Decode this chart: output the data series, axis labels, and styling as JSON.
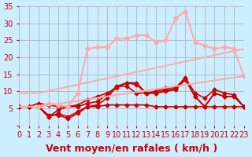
{
  "title": "",
  "xlabel": "Vent moyen/en rafales ( km/h )",
  "ylabel": "",
  "xlim": [
    0,
    23
  ],
  "ylim": [
    0,
    35
  ],
  "xticks": [
    0,
    1,
    2,
    3,
    4,
    5,
    6,
    7,
    8,
    9,
    10,
    11,
    12,
    13,
    14,
    15,
    16,
    17,
    18,
    19,
    20,
    21,
    22,
    23
  ],
  "yticks": [
    0,
    5,
    10,
    15,
    20,
    25,
    30,
    35
  ],
  "bg_color": "#cceeff",
  "grid_color": "#aaaaaa",
  "series": [
    {
      "x": [
        0,
        1,
        2,
        3,
        4,
        5,
        6,
        7,
        8,
        9,
        10,
        11,
        12,
        13,
        14,
        15,
        16,
        17,
        18,
        19,
        20,
        21,
        22,
        23
      ],
      "y": [
        5.5,
        5.5,
        5.5,
        3.0,
        3.0,
        2.0,
        3.5,
        5.5,
        5.5,
        6.0,
        6.0,
        6.0,
        6.0,
        6.0,
        5.5,
        5.5,
        5.5,
        5.5,
        5.5,
        5.5,
        5.5,
        5.5,
        5.5,
        5.5
      ],
      "color": "#cc0000",
      "lw": 1.2,
      "marker": "D",
      "ms": 2.5
    },
    {
      "x": [
        0,
        1,
        2,
        3,
        4,
        5,
        6,
        7,
        8,
        9,
        10,
        11,
        12,
        13,
        14,
        15,
        16,
        17,
        18,
        19,
        20,
        21,
        22,
        23
      ],
      "y": [
        5.5,
        5.5,
        5.5,
        2.5,
        3.5,
        2.5,
        4.0,
        5.5,
        6.0,
        8.0,
        11.5,
        11.5,
        9.5,
        9.5,
        9.5,
        10.0,
        10.5,
        13.5,
        8.5,
        5.5,
        9.5,
        8.5,
        8.5,
        5.5
      ],
      "color": "#cc0000",
      "lw": 1.2,
      "marker": "D",
      "ms": 2.5
    },
    {
      "x": [
        0,
        1,
        2,
        3,
        4,
        5,
        6,
        7,
        8,
        9,
        10,
        11,
        12,
        13,
        14,
        15,
        16,
        17,
        18,
        19,
        20,
        21,
        22,
        23
      ],
      "y": [
        5.5,
        5.5,
        5.5,
        2.5,
        4.5,
        5.5,
        5.5,
        6.5,
        7.0,
        9.0,
        11.5,
        12.5,
        12.0,
        9.5,
        9.5,
        10.5,
        10.5,
        13.5,
        8.5,
        5.5,
        9.5,
        8.5,
        8.5,
        5.5
      ],
      "color": "#cc0000",
      "lw": 1.2,
      "marker": "D",
      "ms": 2.5
    },
    {
      "x": [
        0,
        1,
        2,
        3,
        4,
        5,
        6,
        7,
        8,
        9,
        10,
        11,
        12,
        13,
        14,
        15,
        16,
        17,
        18,
        19,
        20,
        21,
        22,
        23
      ],
      "y": [
        5.5,
        5.5,
        6.5,
        6.0,
        5.5,
        5.5,
        6.0,
        7.5,
        8.5,
        9.5,
        11.0,
        12.5,
        12.5,
        9.5,
        10.0,
        11.0,
        11.0,
        14.0,
        9.5,
        8.0,
        10.5,
        9.5,
        9.0,
        5.5
      ],
      "color": "#cc0000",
      "lw": 1.2,
      "marker": "D",
      "ms": 2.5
    },
    {
      "x": [
        0,
        2,
        23
      ],
      "y": [
        5.5,
        5.5,
        14.5
      ],
      "color": "#ffaaaa",
      "lw": 1.5,
      "marker": null,
      "ms": 0
    },
    {
      "x": [
        0,
        2,
        23
      ],
      "y": [
        9.5,
        9.5,
        22.5
      ],
      "color": "#ffaaaa",
      "lw": 1.5,
      "marker": null,
      "ms": 0
    },
    {
      "x": [
        2,
        3,
        4,
        5,
        6,
        7,
        8,
        9,
        10,
        11,
        12,
        13,
        14,
        15,
        16,
        17,
        18,
        19,
        20,
        21,
        22,
        23
      ],
      "y": [
        5.5,
        6.5,
        6.0,
        5.5,
        9.5,
        22.5,
        23.0,
        23.0,
        25.5,
        25.5,
        26.5,
        26.5,
        24.5,
        25.0,
        31.5,
        33.5,
        24.5,
        23.5,
        22.5,
        23.0,
        22.5,
        14.5
      ],
      "color": "#ffaaaa",
      "lw": 1.5,
      "marker": "D",
      "ms": 3.0
    }
  ],
  "arrow_color": "#cc0000",
  "xlabel_color": "#cc0000",
  "xlabel_fontsize": 9,
  "tick_color": "#cc0000",
  "tick_fontsize": 7
}
